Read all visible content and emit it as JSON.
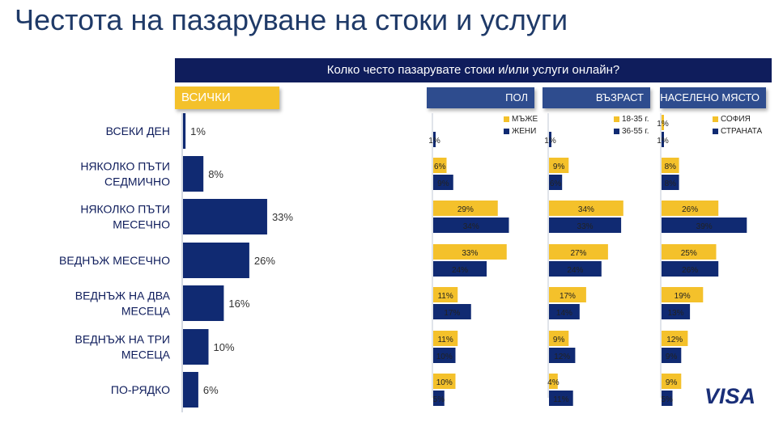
{
  "title": "Честота на пазаруване на стоки и услуги",
  "question": "Колко често пазарувате стоки и/или услуги онлайн?",
  "all_tab": "ВСИЧКИ",
  "segments": [
    {
      "label": "ПОЛ",
      "legend": [
        "МЪЖЕ",
        "ЖЕНИ"
      ]
    },
    {
      "label": "ВЪЗРАСТ",
      "legend": [
        "18-35 г.",
        "36-55 г."
      ]
    },
    {
      "label": "НАСЕЛЕНО МЯСТО",
      "legend": [
        "СОФИЯ",
        "СТРАНАТА"
      ]
    }
  ],
  "logo": "VISA",
  "colors": {
    "navy": "#102a72",
    "gold": "#f4c12b"
  },
  "chart_data": [
    {
      "type": "bar",
      "orientation": "horizontal",
      "name": "ВСИЧКИ",
      "categories": [
        [
          "ВСЕКИ ДЕН"
        ],
        [
          "НЯКОЛКО ПЪТИ",
          "СЕДМИЧНО"
        ],
        [
          "НЯКОЛКО ПЪТИ",
          "МЕСЕЧНО"
        ],
        [
          "ВЕДНЪЖ МЕСЕЧНО"
        ],
        [
          "ВЕДНЪЖ НА ДВА",
          "МЕСЕЦА"
        ],
        [
          "ВЕДНЪЖ НА ТРИ",
          "МЕСЕЦА"
        ],
        [
          "ПО-РЯДКО"
        ]
      ],
      "values": [
        1,
        8,
        33,
        26,
        16,
        10,
        6
      ],
      "labels": [
        "1%",
        "8%",
        "33%",
        "26%",
        "16%",
        "10%",
        "6%"
      ]
    },
    {
      "type": "bar",
      "orientation": "horizontal",
      "name": "ПОЛ",
      "series": [
        {
          "name": "МЪЖЕ",
          "values": [
            0,
            6,
            29,
            33,
            11,
            11,
            10
          ],
          "labels": [
            "",
            "6%",
            "29%",
            "33%",
            "11%",
            "11%",
            "10%"
          ]
        },
        {
          "name": "ЖЕНИ",
          "values": [
            1,
            9,
            34,
            24,
            17,
            10,
            5
          ],
          "labels": [
            "1%",
            "9%",
            "34%",
            "24%",
            "17%",
            "10%",
            "5%"
          ]
        }
      ]
    },
    {
      "type": "bar",
      "orientation": "horizontal",
      "name": "ВЪЗРАСТ",
      "series": [
        {
          "name": "18-35 г.",
          "values": [
            0,
            9,
            34,
            27,
            17,
            9,
            4
          ],
          "labels": [
            "",
            "9%",
            "34%",
            "27%",
            "17%",
            "9%",
            "4%"
          ]
        },
        {
          "name": "36-55 г.",
          "values": [
            1,
            6,
            33,
            24,
            14,
            12,
            11
          ],
          "labels": [
            "1%",
            "6%",
            "33%",
            "24%",
            "14%",
            "12%",
            "11%"
          ]
        }
      ]
    },
    {
      "type": "bar",
      "orientation": "horizontal",
      "name": "НАСЕЛЕНО МЯСТО",
      "series": [
        {
          "name": "СОФИЯ",
          "values": [
            1,
            8,
            26,
            25,
            19,
            12,
            9
          ],
          "labels": [
            "1%",
            "8%",
            "26%",
            "25%",
            "19%",
            "12%",
            "9%"
          ]
        },
        {
          "name": "СТРАНАТА",
          "values": [
            1,
            8,
            39,
            26,
            13,
            9,
            5
          ],
          "labels": [
            "1%",
            "8%",
            "39%",
            "26%",
            "13%",
            "9%",
            "5%"
          ]
        }
      ]
    }
  ]
}
